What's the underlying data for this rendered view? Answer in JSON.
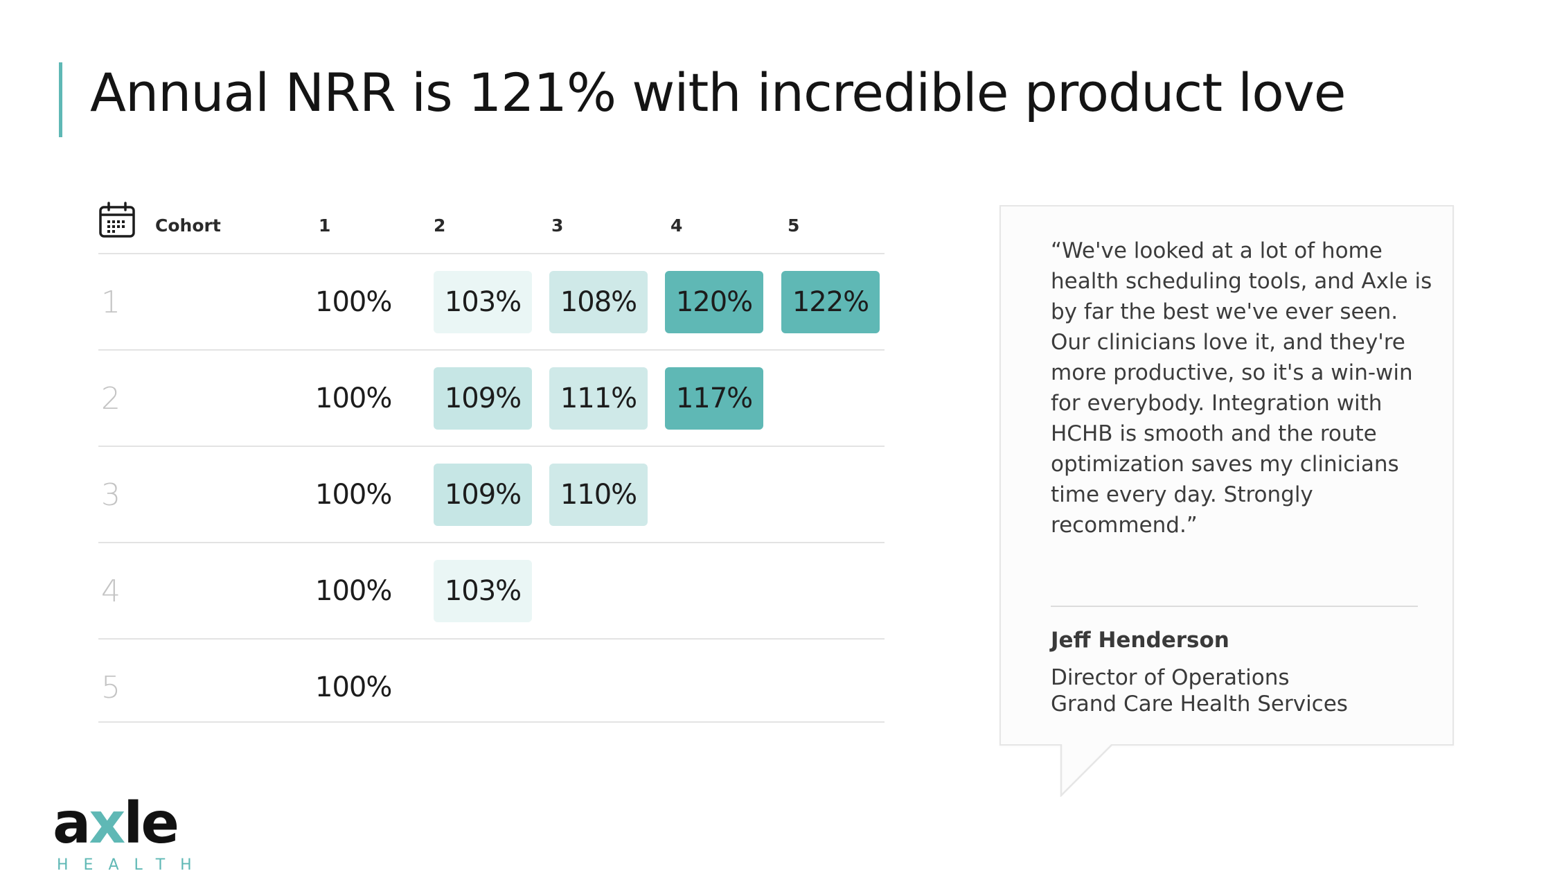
{
  "title": "Annual NRR is 121% with incredible product love",
  "table": {
    "header": {
      "cohort_label": "Cohort",
      "columns": [
        "1",
        "2",
        "3",
        "4",
        "5"
      ]
    },
    "rows": [
      {
        "label": "1",
        "values": [
          "100%",
          "103%",
          "108%",
          "120%",
          "122%"
        ]
      },
      {
        "label": "2",
        "values": [
          "100%",
          "109%",
          "111%",
          "117%"
        ]
      },
      {
        "label": "3",
        "values": [
          "100%",
          "109%",
          "110%"
        ]
      },
      {
        "label": "4",
        "values": [
          "100%",
          "103%"
        ]
      },
      {
        "label": "5",
        "values": [
          "100%"
        ]
      }
    ],
    "heat_colors": {
      "lightest": "#eaf6f5",
      "light": "#cfe9e8",
      "medium": "#c6e6e5",
      "dark": "#5fb8b5"
    }
  },
  "quote": {
    "text": "“We've looked at a lot of home health scheduling tools, and Axle is by far the best we've ever seen. Our clinicians love it, and they're more productive, so it's a win-win for everybody. Integration with HCHB is smooth and the route optimization saves my clinicians time every day. Strongly recommend.”",
    "author": "Jeff Henderson",
    "role": "Director of Operations",
    "organization": "Grand Care Health Services"
  },
  "logo": {
    "word_a": "a",
    "word_x": "x",
    "word_le": "le",
    "subtitle": "HEALTH"
  },
  "colors": {
    "accent": "#5fb8b5"
  }
}
